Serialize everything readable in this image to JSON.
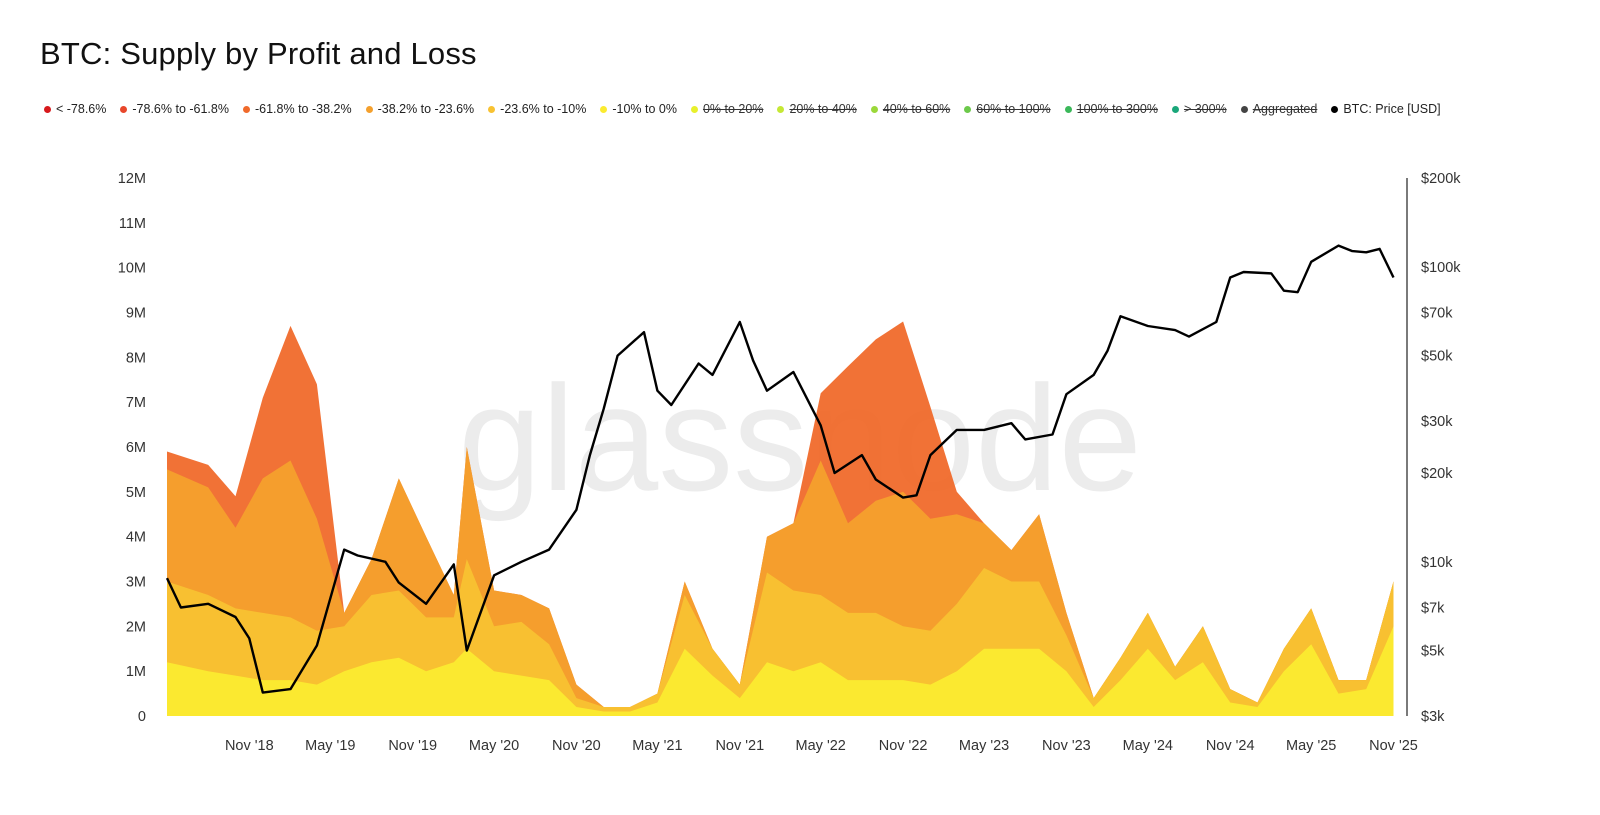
{
  "title": "BTC: Supply by Profit and Loss",
  "watermark": "glassnode",
  "legend": [
    {
      "label": "< -78.6%",
      "color": "#d7191c",
      "enabled": true
    },
    {
      "label": "-78.6% to -61.8%",
      "color": "#e8472b",
      "enabled": true
    },
    {
      "label": "-61.8% to -38.2%",
      "color": "#f06a2b",
      "enabled": true
    },
    {
      "label": "-38.2% to -23.6%",
      "color": "#f4a02d",
      "enabled": true
    },
    {
      "label": "-23.6% to -10%",
      "color": "#f8c232",
      "enabled": true
    },
    {
      "label": "-10% to 0%",
      "color": "#fbeb30",
      "enabled": true
    },
    {
      "label": "0% to 20%",
      "color": "#e8f02c",
      "enabled": false
    },
    {
      "label": "20% to 40%",
      "color": "#c5e835",
      "enabled": false
    },
    {
      "label": "40% to 60%",
      "color": "#9bd83a",
      "enabled": false
    },
    {
      "label": "60% to 100%",
      "color": "#6cc94a",
      "enabled": false
    },
    {
      "label": "100% to 300%",
      "color": "#3bb85a",
      "enabled": false
    },
    {
      "label": "> 300%",
      "color": "#1aa77a",
      "enabled": false
    },
    {
      "label": "Aggregated",
      "color": "#444444",
      "enabled": false
    },
    {
      "label": "BTC: Price [USD]",
      "color": "#000000",
      "enabled": true
    }
  ],
  "chart_data": {
    "type": "area",
    "stacked": true,
    "grid": false,
    "legend_position": "top",
    "x_ticks": [
      "Nov '18",
      "May '19",
      "Nov '19",
      "May '20",
      "Nov '20",
      "May '21",
      "Nov '21",
      "May '22",
      "Nov '22",
      "May '23",
      "Nov '23",
      "May '24",
      "Nov '24",
      "May '25",
      "Nov '25"
    ],
    "x_tick_dates": [
      "2018-11-01",
      "2019-05-01",
      "2019-11-01",
      "2020-05-01",
      "2020-11-01",
      "2021-05-01",
      "2021-11-01",
      "2022-05-01",
      "2022-11-01",
      "2023-05-01",
      "2023-11-01",
      "2024-05-01",
      "2024-11-01",
      "2025-05-01",
      "2025-11-01"
    ],
    "x_range": [
      "2018-05-01",
      "2025-11-20"
    ],
    "y_left": {
      "ticks": [
        "0",
        "1M",
        "2M",
        "3M",
        "4M",
        "5M",
        "6M",
        "7M",
        "8M",
        "9M",
        "10M",
        "11M",
        "12M"
      ],
      "range": [
        0,
        12000000
      ]
    },
    "y_right": {
      "scale": "log",
      "ticks": [
        "$3k",
        "$5k",
        "$7k",
        "$10k",
        "$20k",
        "$30k",
        "$50k",
        "$70k",
        "$100k",
        "$200k"
      ],
      "tick_values": [
        3000,
        5000,
        7000,
        10000,
        20000,
        30000,
        50000,
        70000,
        100000,
        200000
      ],
      "range": [
        3000,
        200000
      ]
    },
    "x": [
      "2018-05",
      "2018-08",
      "2018-10",
      "2018-12",
      "2019-02",
      "2019-04",
      "2019-06",
      "2019-08",
      "2019-10",
      "2019-12",
      "2020-02",
      "2020-03",
      "2020-05",
      "2020-07",
      "2020-09",
      "2020-11",
      "2021-01",
      "2021-03",
      "2021-05",
      "2021-07",
      "2021-09",
      "2021-11",
      "2022-01",
      "2022-03",
      "2022-05",
      "2022-07",
      "2022-09",
      "2022-11",
      "2023-01",
      "2023-03",
      "2023-05",
      "2023-07",
      "2023-09",
      "2023-11",
      "2024-01",
      "2024-03",
      "2024-05",
      "2024-07",
      "2024-09",
      "2024-11",
      "2025-01",
      "2025-03",
      "2025-05",
      "2025-07",
      "2025-09",
      "2025-11"
    ],
    "series": [
      {
        "name": "-61.8% to -38.2%",
        "values": [
          400000,
          500000,
          700000,
          1800000,
          3000000,
          3000000,
          0,
          0,
          0,
          0,
          0,
          0,
          0,
          0,
          0,
          0,
          0,
          0,
          0,
          0,
          0,
          0,
          0,
          0,
          1500000,
          3500000,
          3600000,
          3800000,
          2500000,
          500000,
          0,
          0,
          0,
          0,
          0,
          0,
          0,
          0,
          0,
          0,
          0,
          0,
          0,
          0,
          0,
          0
        ]
      },
      {
        "name": "-38.2% to -23.6%",
        "values": [
          2500000,
          2400000,
          1800000,
          3000000,
          3500000,
          2500000,
          300000,
          800000,
          2500000,
          1800000,
          500000,
          2500000,
          800000,
          600000,
          800000,
          300000,
          0,
          0,
          0,
          300000,
          0,
          0,
          800000,
          1500000,
          3000000,
          2000000,
          2500000,
          3000000,
          2500000,
          2000000,
          1000000,
          700000,
          1500000,
          500000,
          0,
          0,
          0,
          0,
          0,
          0,
          0,
          0,
          0,
          0,
          0,
          0
        ]
      },
      {
        "name": "-23.6% to -10%",
        "values": [
          1800000,
          1700000,
          1500000,
          1500000,
          1400000,
          1200000,
          1000000,
          1500000,
          1500000,
          1200000,
          1000000,
          2000000,
          1000000,
          1200000,
          800000,
          200000,
          100000,
          100000,
          200000,
          1200000,
          600000,
          300000,
          2000000,
          1800000,
          1500000,
          1500000,
          1500000,
          1200000,
          1200000,
          1500000,
          1800000,
          1500000,
          1500000,
          800000,
          200000,
          500000,
          800000,
          300000,
          800000,
          300000,
          100000,
          500000,
          800000,
          300000,
          200000,
          1000000
        ]
      },
      {
        "name": "-10% to 0%",
        "values": [
          1200000,
          1000000,
          900000,
          800000,
          800000,
          700000,
          1000000,
          1200000,
          1300000,
          1000000,
          1200000,
          1500000,
          1000000,
          900000,
          800000,
          200000,
          100000,
          100000,
          300000,
          1500000,
          900000,
          400000,
          1200000,
          1000000,
          1200000,
          800000,
          800000,
          800000,
          700000,
          1000000,
          1500000,
          1500000,
          1500000,
          1000000,
          200000,
          800000,
          1500000,
          800000,
          1200000,
          300000,
          200000,
          1000000,
          1600000,
          500000,
          600000,
          2000000
        ]
      }
    ],
    "price": {
      "name": "BTC: Price [USD]",
      "x": [
        "2018-05",
        "2018-06",
        "2018-08",
        "2018-10",
        "2018-11",
        "2018-12",
        "2019-02",
        "2019-04",
        "2019-06",
        "2019-07",
        "2019-09",
        "2019-10",
        "2019-12",
        "2020-02",
        "2020-03",
        "2020-05",
        "2020-07",
        "2020-09",
        "2020-11",
        "2020-12",
        "2021-01",
        "2021-02",
        "2021-04",
        "2021-05",
        "2021-06",
        "2021-08",
        "2021-09",
        "2021-11",
        "2021-12",
        "2022-01",
        "2022-03",
        "2022-05",
        "2022-06",
        "2022-08",
        "2022-09",
        "2022-11",
        "2022-12",
        "2023-01",
        "2023-03",
        "2023-05",
        "2023-07",
        "2023-08",
        "2023-10",
        "2023-11",
        "2024-01",
        "2024-02",
        "2024-03",
        "2024-05",
        "2024-07",
        "2024-08",
        "2024-10",
        "2024-11",
        "2024-12",
        "2025-02",
        "2025-03",
        "2025-04",
        "2025-05",
        "2025-07",
        "2025-08",
        "2025-09",
        "2025-10",
        "2025-11"
      ],
      "values": [
        8800,
        7000,
        7200,
        6500,
        5500,
        3600,
        3700,
        5200,
        11000,
        10500,
        10000,
        8500,
        7200,
        9800,
        5000,
        9000,
        10000,
        11000,
        15000,
        23000,
        33000,
        50000,
        60000,
        38000,
        34000,
        47000,
        43000,
        65000,
        48000,
        38000,
        44000,
        29000,
        20000,
        23000,
        19000,
        16500,
        16800,
        23000,
        28000,
        28000,
        29500,
        26000,
        27000,
        37000,
        43000,
        52000,
        68000,
        63000,
        61000,
        58000,
        65000,
        92000,
        96000,
        95000,
        83000,
        82000,
        104000,
        118000,
        113000,
        112000,
        115000,
        92000
      ]
    }
  }
}
